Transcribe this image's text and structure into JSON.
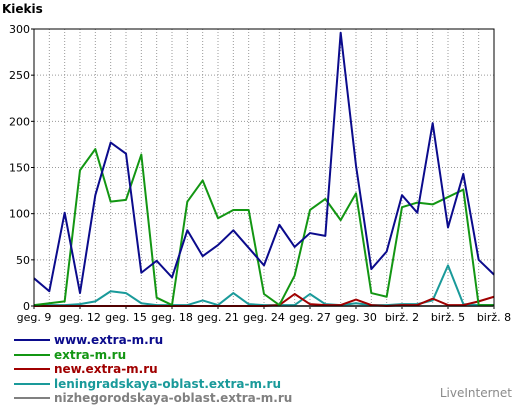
{
  "chart_data": {
    "type": "line",
    "ylabel": "Kiekis",
    "ylim": [
      0,
      300
    ],
    "yticks": [
      0,
      50,
      100,
      150,
      200,
      250,
      300
    ],
    "grid": true,
    "x_tick_labels": [
      "geg. 9",
      "geg. 12",
      "geg. 15",
      "geg. 18",
      "geg. 21",
      "geg. 24",
      "geg. 27",
      "geg. 30",
      "birž. 2",
      "birž. 5",
      "birž. 8"
    ],
    "x_count": 31,
    "series": [
      {
        "name": "www.extra-m.ru",
        "color": "#0b0b8c",
        "values": [
          30,
          16,
          101,
          14,
          120,
          177,
          165,
          36,
          49,
          31,
          82,
          54,
          66,
          82,
          63,
          44,
          88,
          64,
          79,
          76,
          296,
          152,
          40,
          59,
          120,
          101,
          198,
          85,
          143,
          50,
          34
        ]
      },
      {
        "name": "extra-m.ru",
        "color": "#139613",
        "values": [
          1,
          3,
          5,
          147,
          170,
          113,
          115,
          164,
          9,
          1,
          113,
          136,
          95,
          104,
          104,
          13,
          1,
          33,
          104,
          116,
          93,
          122,
          14,
          10,
          107,
          112,
          110,
          118,
          126,
          1,
          1
        ]
      },
      {
        "name": "new.extra-m.ru",
        "color": "#a00000",
        "values": [
          0,
          0,
          0,
          0,
          0,
          0,
          0,
          0,
          0,
          0,
          0,
          0,
          0,
          0,
          0,
          0,
          1,
          13,
          2,
          1,
          1,
          7,
          1,
          0,
          1,
          1,
          8,
          1,
          1,
          5,
          10
        ]
      },
      {
        "name": "leningradskaya-oblast.extra-m.ru",
        "color": "#1a9a9a",
        "values": [
          1,
          1,
          1,
          2,
          5,
          16,
          14,
          3,
          1,
          1,
          1,
          6,
          1,
          14,
          2,
          1,
          1,
          1,
          13,
          2,
          1,
          3,
          1,
          1,
          2,
          2,
          6,
          44,
          2,
          1,
          1
        ]
      },
      {
        "name": "nizhegorodskaya-oblast.extra-m.ru",
        "color": "#808080",
        "values": [
          0,
          0,
          0,
          0,
          0,
          0,
          0,
          0,
          0,
          0,
          0,
          0,
          0,
          0,
          0,
          0,
          0,
          0,
          0,
          0,
          0,
          0,
          0,
          0,
          0,
          0,
          0,
          0,
          0,
          0,
          0
        ]
      }
    ]
  },
  "brand": "LiveInternet"
}
